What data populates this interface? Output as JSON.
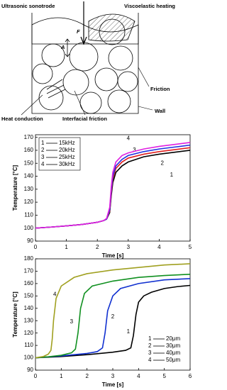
{
  "diagram": {
    "labels": {
      "sonotrode": "Ultrasonic sonotrode",
      "viscoelastic": "Viscoelastic heating",
      "force": "F",
      "amplitude": "A",
      "friction": "Friction",
      "heat_conduction": "Heat conduction",
      "interfacial": "Interfacial friction",
      "wall": "Wall"
    }
  },
  "chart_data": [
    {
      "type": "line",
      "x_label": "Time [s]",
      "y_label": "Temperature [°C]",
      "xlim": [
        0,
        5
      ],
      "xticks": [
        0,
        1,
        2,
        3,
        4,
        5
      ],
      "ylim": [
        90,
        172
      ],
      "yticks": [
        90,
        100,
        110,
        120,
        130,
        140,
        150,
        160,
        170
      ],
      "grid": false,
      "legend": "top-left",
      "legend_box": true,
      "curve_labels": [
        "1",
        "2",
        "3",
        "4"
      ],
      "series": [
        {
          "name": "15kHz",
          "color": "#000000",
          "x": [
            0,
            0.5,
            1,
            1.5,
            2,
            2.2,
            2.3,
            2.4,
            2.45,
            2.5,
            2.6,
            2.8,
            3,
            3.5,
            4,
            4.5,
            5
          ],
          "values": [
            100,
            100.8,
            101.7,
            102.8,
            104.5,
            105.8,
            107,
            112,
            125,
            135,
            143,
            148,
            151,
            155,
            157,
            158.5,
            160
          ]
        },
        {
          "name": "20kHz",
          "color": "#e02020",
          "x": [
            0,
            0.5,
            1,
            1.5,
            2,
            2.2,
            2.3,
            2.4,
            2.45,
            2.5,
            2.6,
            2.8,
            3,
            3.5,
            4,
            4.5,
            5
          ],
          "values": [
            100,
            100.8,
            101.7,
            102.8,
            104.5,
            105.8,
            107,
            113,
            127,
            138,
            146,
            151,
            154,
            157,
            159,
            160.5,
            162
          ]
        },
        {
          "name": "25kHz",
          "color": "#2030e0",
          "x": [
            0,
            0.5,
            1,
            1.5,
            2,
            2.2,
            2.3,
            2.4,
            2.45,
            2.5,
            2.6,
            2.8,
            3,
            3.5,
            4,
            4.5,
            5
          ],
          "values": [
            100,
            100.8,
            101.7,
            102.8,
            104.5,
            105.8,
            107,
            114,
            129,
            140,
            148,
            153,
            156,
            159,
            161,
            162.5,
            164
          ]
        },
        {
          "name": "30kHz",
          "color": "#e020e0",
          "x": [
            0,
            0.5,
            1,
            1.5,
            2,
            2.2,
            2.3,
            2.4,
            2.45,
            2.5,
            2.6,
            2.8,
            3,
            3.5,
            4,
            4.5,
            5
          ],
          "values": [
            100,
            100.8,
            101.7,
            102.8,
            104.5,
            105.8,
            107.5,
            116,
            132,
            143,
            151,
            156,
            158,
            161,
            163,
            164.5,
            166
          ]
        }
      ]
    },
    {
      "type": "line",
      "x_label": "Time [s]",
      "y_label": "Temperature [°C]",
      "xlim": [
        0,
        6
      ],
      "xticks": [
        0,
        1,
        2,
        3,
        4,
        5,
        6
      ],
      "ylim": [
        90,
        180
      ],
      "yticks": [
        90,
        100,
        110,
        120,
        130,
        140,
        150,
        160,
        170,
        180
      ],
      "grid": false,
      "legend": "bottom-right",
      "legend_box": false,
      "curve_labels": [
        "1",
        "2",
        "3",
        "4"
      ],
      "series": [
        {
          "name": "20μm",
          "color": "#000000",
          "x": [
            0,
            1,
            2,
            3,
            3.5,
            3.7,
            3.8,
            3.9,
            4,
            4.2,
            4.5,
            5,
            5.5,
            6
          ],
          "values": [
            100,
            101,
            102.5,
            104.5,
            106,
            108,
            118,
            135,
            145,
            150,
            153,
            156,
            157.5,
            158.5
          ]
        },
        {
          "name": "30μm",
          "color": "#1030d0",
          "x": [
            0,
            1,
            2,
            2.4,
            2.6,
            2.7,
            2.8,
            3,
            3.3,
            4,
            5,
            6
          ],
          "values": [
            100,
            101.5,
            103.5,
            105,
            108,
            120,
            138,
            150,
            156,
            160,
            163,
            164
          ]
        },
        {
          "name": "40μm",
          "color": "#109020",
          "x": [
            0,
            0.5,
            1,
            1.4,
            1.55,
            1.65,
            1.75,
            1.9,
            2.2,
            3,
            4,
            5,
            6
          ],
          "values": [
            100,
            100.8,
            102,
            104,
            107,
            120,
            140,
            152,
            158,
            162,
            165,
            166.5,
            167.5
          ]
        },
        {
          "name": "50μm",
          "color": "#a0a020",
          "x": [
            0,
            0.3,
            0.5,
            0.6,
            0.65,
            0.7,
            0.8,
            1,
            1.5,
            2,
            3,
            4,
            5,
            6
          ],
          "values": [
            100,
            101,
            103,
            106,
            115,
            130,
            148,
            158,
            165,
            168,
            171,
            173,
            175,
            176
          ]
        }
      ]
    }
  ]
}
